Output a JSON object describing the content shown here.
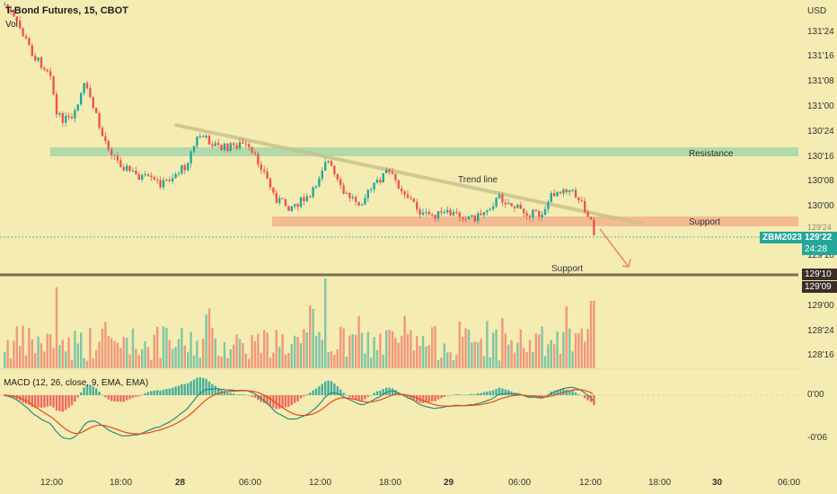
{
  "header": {
    "title": "T-Bond Futures, 15, CBOT",
    "volume_label": "Vol"
  },
  "price_axis": {
    "currency": "USD",
    "ticks": [
      "131'24",
      "131'16",
      "131'08",
      "131'00",
      "130'24",
      "130'16",
      "130'08",
      "130'00",
      "129'16",
      "129'10",
      "129'09",
      "129'00",
      "128'24",
      "128'16"
    ],
    "current_symbol": "ZBM2023",
    "current_price": "129'22",
    "countdown": "24:28",
    "line_price_1": "129'10",
    "line_price_2": "129'09",
    "partial_tick": "129'24"
  },
  "macd": {
    "label": "MACD (12, 26, close, 9, EMA, EMA)",
    "ticks": [
      "0'00",
      "-0'06"
    ]
  },
  "time_axis": {
    "ticks": [
      "12:00",
      "18:00",
      "28",
      "06:00",
      "12:00",
      "18:00",
      "29",
      "06:00",
      "12:00",
      "18:00",
      "30",
      "06:00"
    ]
  },
  "annotations": {
    "resistance": "Resistance",
    "trend_line": "Trend line",
    "support_zone": "Support",
    "support_line": "Support"
  },
  "colors": {
    "background": "#f4ecb2",
    "up": "#26a69a",
    "down": "#ef5350",
    "resistance_zone": "#a5d6a7",
    "support_zone": "#f0b089",
    "macd_line": "#2d8a7d",
    "signal_line": "#e64a19",
    "symbol_tag": "#26a69a",
    "line_tag": "#3b2e28"
  }
}
